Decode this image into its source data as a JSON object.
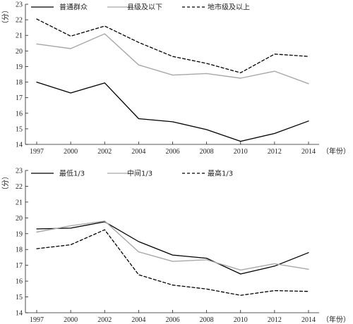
{
  "chart_data": [
    {
      "type": "line",
      "ylabel": "（分）",
      "xlabel": "（年份）",
      "x": [
        1997,
        2000,
        2002,
        2004,
        2006,
        2008,
        2010,
        2012,
        2014
      ],
      "ylim": [
        14,
        23
      ],
      "yticks": [
        14,
        15,
        16,
        17,
        18,
        19,
        20,
        21,
        22,
        23
      ],
      "grid": false,
      "legend_position": "top",
      "series": [
        {
          "name": "普通群众",
          "color": "#000000",
          "dash": "solid",
          "values": [
            18.0,
            17.3,
            17.95,
            15.65,
            15.45,
            14.95,
            14.2,
            14.7,
            15.5
          ]
        },
        {
          "name": "县级及以下",
          "color": "#a8a8a8",
          "dash": "solid",
          "values": [
            20.45,
            20.15,
            21.1,
            19.1,
            18.45,
            18.55,
            18.25,
            18.7,
            17.9
          ]
        },
        {
          "name": "地市级及以上",
          "color": "#000000",
          "dash": "dashed",
          "values": [
            22.05,
            20.95,
            21.6,
            20.55,
            19.65,
            19.2,
            18.6,
            19.8,
            19.65
          ]
        }
      ]
    },
    {
      "type": "line",
      "ylabel": "（分）",
      "xlabel": "（年份）",
      "x": [
        1997,
        2000,
        2002,
        2004,
        2006,
        2008,
        2010,
        2012,
        2014
      ],
      "ylim": [
        14,
        23
      ],
      "yticks": [
        14,
        15,
        16,
        17,
        18,
        19,
        20,
        21,
        22,
        23
      ],
      "grid": false,
      "legend_position": "top",
      "series": [
        {
          "name": "最低1/3",
          "color": "#000000",
          "dash": "solid",
          "values": [
            19.3,
            19.35,
            19.75,
            18.5,
            17.65,
            17.45,
            16.45,
            16.95,
            17.8
          ]
        },
        {
          "name": "中间1/3",
          "color": "#a8a8a8",
          "dash": "solid",
          "values": [
            19.1,
            19.5,
            19.8,
            17.85,
            17.25,
            17.35,
            16.7,
            17.1,
            16.75
          ]
        },
        {
          "name": "最高1/3",
          "color": "#000000",
          "dash": "dashed",
          "values": [
            18.05,
            18.3,
            19.25,
            16.4,
            15.75,
            15.5,
            15.1,
            15.4,
            15.35
          ]
        }
      ]
    }
  ]
}
